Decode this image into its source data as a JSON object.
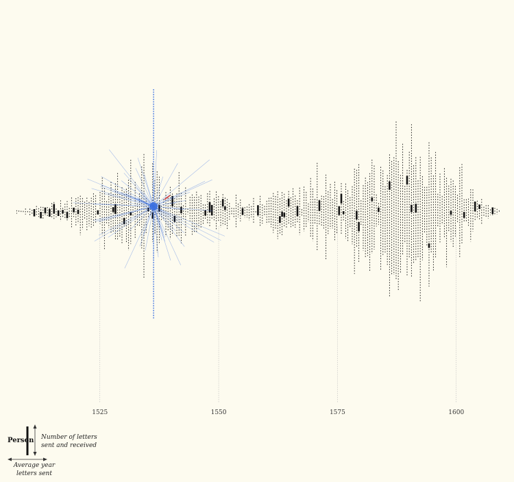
{
  "chart_data": {
    "type": "beeswarm-timeline",
    "title": "",
    "xlabel": "",
    "ylabel": "",
    "xlim": [
      1506,
      1611
    ],
    "x_ticks": [
      1525,
      1550,
      1575,
      1600
    ],
    "x_tick_labels": [
      "1525",
      "1550",
      "1575",
      "1600"
    ],
    "grid": "vertical guide lines at labelled years",
    "encoding": {
      "x": "average year letters sent",
      "line_length": "number of letters sent and received",
      "mark": "one vertical dashed line per person"
    },
    "highlight": {
      "year": 1536.3,
      "color": "#3a6fe0",
      "accent_color": "#d94040",
      "description_in_legend": false
    },
    "people_density_profile": [
      {
        "year": 1508,
        "people": 4,
        "max_letters": 6
      },
      {
        "year": 1512,
        "people": 8,
        "max_letters": 20
      },
      {
        "year": 1516,
        "people": 14,
        "max_letters": 40
      },
      {
        "year": 1520,
        "people": 18,
        "max_letters": 55
      },
      {
        "year": 1524,
        "people": 22,
        "max_letters": 70
      },
      {
        "year": 1528,
        "people": 28,
        "max_letters": 110
      },
      {
        "year": 1532,
        "people": 36,
        "max_letters": 140
      },
      {
        "year": 1536,
        "people": 44,
        "max_letters": 200
      },
      {
        "year": 1540,
        "people": 38,
        "max_letters": 130
      },
      {
        "year": 1544,
        "people": 28,
        "max_letters": 100
      },
      {
        "year": 1548,
        "people": 18,
        "max_letters": 60
      },
      {
        "year": 1552,
        "people": 16,
        "max_letters": 45
      },
      {
        "year": 1556,
        "people": 18,
        "max_letters": 50
      },
      {
        "year": 1560,
        "people": 22,
        "max_letters": 70
      },
      {
        "year": 1564,
        "people": 26,
        "max_letters": 90
      },
      {
        "year": 1568,
        "people": 30,
        "max_letters": 110
      },
      {
        "year": 1572,
        "people": 34,
        "max_letters": 130
      },
      {
        "year": 1576,
        "people": 40,
        "max_letters": 160
      },
      {
        "year": 1580,
        "people": 48,
        "max_letters": 200
      },
      {
        "year": 1584,
        "people": 54,
        "max_letters": 230
      },
      {
        "year": 1588,
        "people": 56,
        "max_letters": 240
      },
      {
        "year": 1592,
        "people": 56,
        "max_letters": 250
      },
      {
        "year": 1596,
        "people": 50,
        "max_letters": 270
      },
      {
        "year": 1600,
        "people": 36,
        "max_letters": 180
      },
      {
        "year": 1604,
        "people": 14,
        "max_letters": 60
      },
      {
        "year": 1608,
        "people": 4,
        "max_letters": 10
      }
    ]
  },
  "legend": {
    "person_label": "Person",
    "vertical_label_line1": "Number of letters",
    "vertical_label_line2": "sent and received",
    "horizontal_label_line1": "Average year",
    "horizontal_label_line2": "letters sent"
  },
  "colors": {
    "background": "#fdfbef",
    "mark": "#111111",
    "grid": "#bbbbbb",
    "highlight": "#3a6fe0",
    "accent": "#d94040"
  }
}
